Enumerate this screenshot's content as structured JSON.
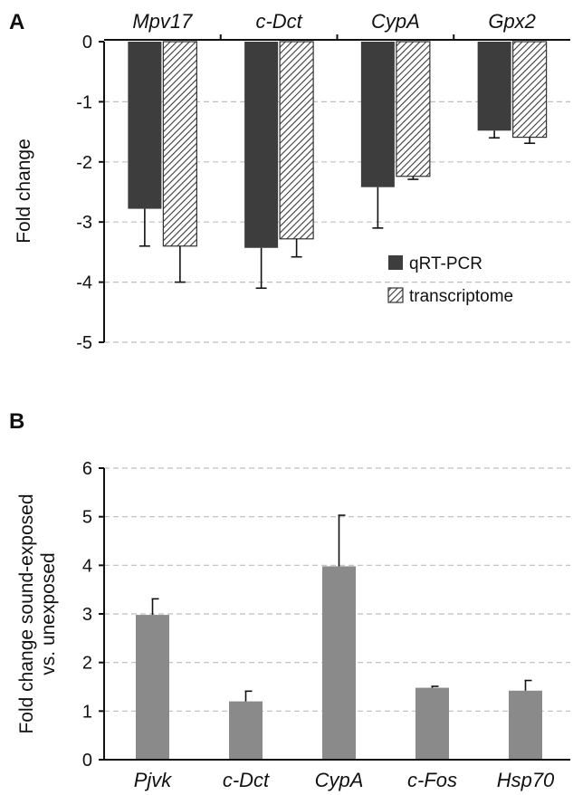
{
  "chart_data": [
    {
      "panel": "A",
      "type": "bar",
      "categories": [
        "Mpv17",
        "c-Dct",
        "CypA",
        "Gpx2"
      ],
      "ylabel": "Fold change",
      "ylim": [
        -5,
        0
      ],
      "yticks": [
        "0",
        "-1",
        "-2",
        "-3",
        "-4",
        "-5"
      ],
      "grid": true,
      "legend_position": "bottom-right",
      "series": [
        {
          "name": "qRT-PCR",
          "values": [
            -2.78,
            -3.43,
            -2.42,
            -1.48
          ],
          "errors": [
            0.62,
            0.67,
            0.68,
            0.12
          ],
          "color": "#3d3d3d",
          "pattern": "solid"
        },
        {
          "name": "transcriptome",
          "values": [
            -3.4,
            -3.28,
            -2.24,
            -1.59
          ],
          "errors": [
            0.6,
            0.3,
            0.05,
            0.1
          ],
          "color": "#ffffff",
          "pattern": "hatched"
        }
      ]
    },
    {
      "panel": "B",
      "type": "bar",
      "categories": [
        "Pjvk",
        "c-Dct",
        "CypA",
        "c-Fos",
        "Hsp70"
      ],
      "ylabel": "Fold change sound-exposed vs. unexposed",
      "ylabel_lines": [
        "Fold change sound-exposed",
        "vs. unexposed"
      ],
      "ylim": [
        0,
        6
      ],
      "yticks": [
        "0",
        "1",
        "2",
        "3",
        "4",
        "5",
        "6"
      ],
      "grid": true,
      "series": [
        {
          "values": [
            2.98,
            1.2,
            3.98,
            1.48,
            1.42
          ],
          "errors": [
            0.33,
            0.21,
            1.05,
            0.03,
            0.21
          ],
          "color": "#8a8a8a"
        }
      ]
    }
  ]
}
